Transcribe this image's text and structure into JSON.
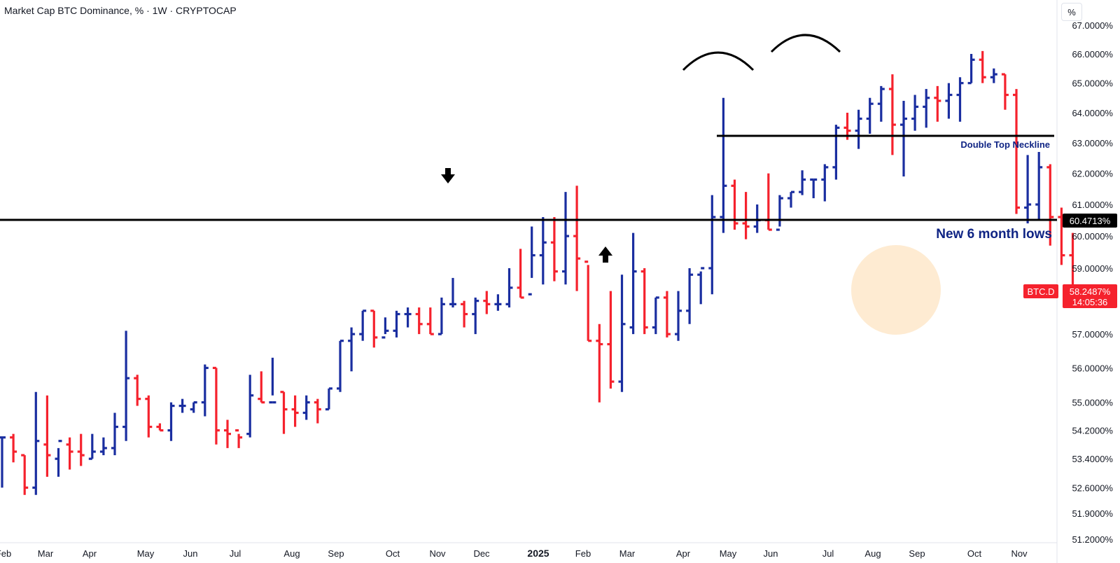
{
  "header": {
    "title": "Market Cap BTC Dominance, % · 1W · CRYPTOCAP",
    "scale_button": "%"
  },
  "colors": {
    "up_bar": "#1a2ea0",
    "down_bar": "#f5222d",
    "price_tag": "#f5222d",
    "annotation_blue": "#0f2484",
    "highlight": "#fde4c3"
  },
  "chart_data": {
    "type": "ohlc",
    "symbol": "BTC.D",
    "timeframe": "1W",
    "y_unit": "%",
    "y_axis": {
      "scale": "log",
      "ticks": [
        "67.0000%",
        "66.0000%",
        "65.0000%",
        "64.0000%",
        "63.0000%",
        "62.0000%",
        "61.0000%",
        "60.0000%",
        "59.0000%",
        "57.0000%",
        "56.0000%",
        "55.0000%",
        "54.2000%",
        "53.4000%",
        "52.6000%",
        "51.9000%",
        "51.2000%"
      ]
    },
    "x_axis": {
      "labels": [
        "Feb",
        "Mar",
        "Apr",
        "May",
        "Jun",
        "Jul",
        "Aug",
        "Sep",
        "Oct",
        "Nov",
        "Dec",
        "2025",
        "Feb",
        "Mar",
        "Apr",
        "May",
        "Jun",
        "Jul",
        "Aug",
        "Sep",
        "Oct",
        "Nov"
      ]
    },
    "last_price": {
      "symbol": "BTC.D",
      "value": "58.2487%",
      "countdown": "14:05:36"
    },
    "horizontal_level": {
      "value": "60.4713%"
    },
    "annotations": {
      "neckline_label": "Double Top Neckline",
      "lows_label": "New 6 month lows"
    },
    "ohlc_fields": [
      "open",
      "high",
      "low",
      "close"
    ],
    "bars": [
      [
        54.0,
        54.0,
        52.6,
        54.0
      ],
      [
        54.0,
        54.1,
        53.3,
        53.6
      ],
      [
        53.5,
        53.5,
        52.4,
        52.6
      ],
      [
        52.6,
        55.3,
        52.4,
        53.9
      ],
      [
        53.8,
        55.2,
        52.9,
        53.5
      ],
      [
        53.4,
        53.7,
        52.9,
        53.9
      ],
      [
        53.8,
        54.0,
        53.1,
        53.6
      ],
      [
        53.6,
        54.1,
        53.2,
        53.5
      ],
      [
        53.4,
        54.1,
        53.4,
        53.6
      ],
      [
        53.6,
        54.0,
        53.5,
        53.7
      ],
      [
        53.7,
        54.7,
        53.5,
        54.3
      ],
      [
        54.3,
        57.1,
        53.9,
        55.7
      ],
      [
        55.7,
        55.8,
        54.9,
        55.1
      ],
      [
        55.1,
        55.2,
        54.0,
        54.3
      ],
      [
        54.3,
        54.4,
        54.2,
        54.2
      ],
      [
        54.2,
        55.0,
        53.9,
        54.9
      ],
      [
        54.9,
        55.1,
        54.7,
        54.9
      ],
      [
        54.8,
        55.0,
        54.7,
        55.0
      ],
      [
        55.0,
        56.1,
        54.6,
        56.0
      ],
      [
        56.0,
        56.0,
        53.8,
        54.2
      ],
      [
        54.2,
        54.5,
        53.7,
        54.1
      ],
      [
        54.2,
        54.1,
        53.7,
        54.0
      ],
      [
        54.1,
        55.8,
        54.0,
        55.2
      ],
      [
        55.1,
        55.9,
        55.0,
        55.0
      ],
      [
        55.0,
        56.3,
        55.2,
        55.0
      ],
      [
        55.3,
        55.3,
        54.1,
        54.8
      ],
      [
        54.8,
        55.2,
        54.3,
        54.7
      ],
      [
        54.7,
        55.2,
        54.5,
        55.0
      ],
      [
        55.0,
        55.1,
        54.4,
        54.8
      ],
      [
        54.8,
        55.4,
        54.8,
        55.4
      ],
      [
        55.4,
        56.8,
        55.3,
        56.8
      ],
      [
        56.8,
        57.2,
        55.9,
        57.0
      ],
      [
        57.0,
        57.7,
        56.8,
        57.7
      ],
      [
        57.7,
        57.7,
        56.6,
        56.9
      ],
      [
        56.9,
        57.5,
        57.0,
        57.1
      ],
      [
        57.1,
        57.7,
        56.9,
        57.6
      ],
      [
        57.6,
        57.8,
        57.2,
        57.6
      ],
      [
        57.6,
        57.8,
        57.0,
        57.3
      ],
      [
        57.3,
        57.8,
        57.0,
        57.0
      ],
      [
        57.0,
        58.1,
        57.0,
        57.9
      ],
      [
        57.9,
        58.7,
        57.8,
        57.9
      ],
      [
        57.9,
        58.0,
        57.2,
        57.6
      ],
      [
        57.6,
        58.1,
        57.0,
        58.0
      ],
      [
        58.0,
        58.3,
        57.6,
        57.9
      ],
      [
        57.9,
        58.2,
        57.7,
        57.9
      ],
      [
        57.9,
        59.0,
        57.8,
        58.4
      ],
      [
        58.4,
        59.6,
        58.1,
        58.1
      ],
      [
        58.2,
        60.3,
        58.7,
        59.4
      ],
      [
        59.4,
        60.6,
        58.5,
        59.8
      ],
      [
        59.8,
        60.6,
        58.6,
        58.9
      ],
      [
        58.9,
        61.4,
        58.5,
        60.0
      ],
      [
        60.0,
        61.6,
        58.3,
        59.3
      ],
      [
        59.2,
        59.1,
        56.8,
        56.8
      ],
      [
        56.8,
        57.3,
        55.0,
        56.7
      ],
      [
        56.7,
        58.3,
        55.4,
        55.6
      ],
      [
        55.6,
        58.8,
        55.3,
        57.3
      ],
      [
        57.2,
        60.1,
        57.0,
        58.9
      ],
      [
        58.9,
        59.0,
        57.0,
        57.2
      ],
      [
        57.2,
        58.1,
        57.0,
        58.1
      ],
      [
        58.1,
        58.3,
        56.9,
        57.0
      ],
      [
        57.0,
        58.3,
        56.8,
        57.7
      ],
      [
        57.7,
        59.0,
        57.3,
        58.8
      ],
      [
        58.8,
        58.9,
        57.9,
        59.0
      ],
      [
        59.0,
        61.3,
        58.2,
        60.6
      ],
      [
        60.6,
        64.5,
        60.1,
        61.6
      ],
      [
        61.6,
        61.8,
        60.2,
        60.4
      ],
      [
        60.4,
        61.4,
        59.9,
        60.3
      ],
      [
        60.3,
        61.0,
        60.1,
        60.5
      ],
      [
        60.5,
        62.0,
        60.2,
        60.2
      ],
      [
        60.2,
        61.3,
        60.3,
        61.2
      ],
      [
        61.2,
        61.4,
        60.9,
        61.4
      ],
      [
        61.4,
        62.1,
        61.3,
        61.8
      ],
      [
        61.8,
        61.8,
        61.2,
        61.8
      ],
      [
        61.8,
        62.3,
        61.1,
        62.2
      ],
      [
        62.2,
        63.6,
        61.8,
        63.5
      ],
      [
        63.5,
        64.0,
        63.1,
        63.4
      ],
      [
        63.4,
        64.1,
        62.8,
        63.8
      ],
      [
        63.8,
        64.5,
        63.3,
        64.3
      ],
      [
        64.3,
        64.9,
        63.7,
        64.8
      ],
      [
        64.8,
        65.3,
        62.6,
        63.6
      ],
      [
        63.6,
        64.4,
        61.9,
        63.8
      ],
      [
        63.8,
        64.6,
        63.4,
        64.2
      ],
      [
        64.2,
        64.8,
        63.5,
        64.5
      ],
      [
        64.5,
        64.9,
        63.7,
        64.4
      ],
      [
        64.4,
        65.0,
        63.8,
        64.6
      ],
      [
        64.6,
        65.2,
        63.7,
        65.0
      ],
      [
        65.0,
        66.0,
        65.0,
        65.8
      ],
      [
        65.8,
        66.1,
        65.0,
        65.2
      ],
      [
        65.2,
        65.5,
        65.0,
        65.3
      ],
      [
        65.3,
        65.3,
        64.1,
        64.6
      ],
      [
        64.6,
        64.8,
        60.7,
        60.9
      ],
      [
        60.9,
        62.6,
        60.4,
        61.0
      ],
      [
        61.0,
        62.7,
        60.5,
        62.2
      ],
      [
        62.2,
        62.3,
        59.7,
        60.6
      ],
      [
        60.6,
        60.9,
        59.1,
        59.4
      ],
      [
        59.4,
        60.1,
        58.0,
        58.2
      ]
    ]
  }
}
